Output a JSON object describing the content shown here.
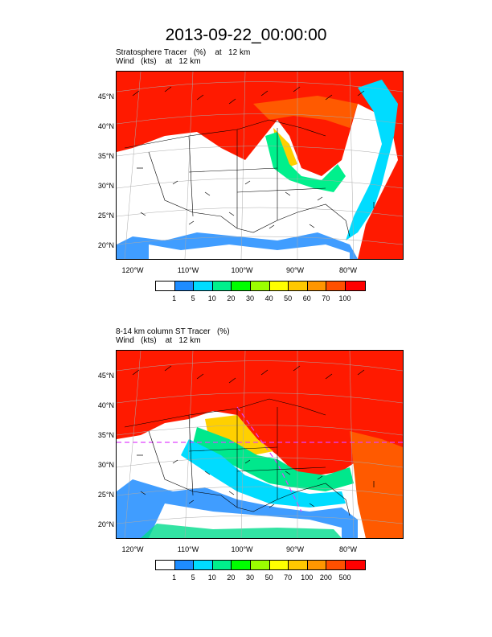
{
  "title": "2013-09-22_00:00:00",
  "panels": [
    {
      "field_line": "Stratosphere Tracer   (%)    at   12 km",
      "wind_line": "Wind   (kts)    at   12 km",
      "lat_labels": [
        "45°N",
        "40°N",
        "35°N",
        "30°N",
        "25°N",
        "20°N"
      ],
      "lon_labels": [
        "120°W",
        "110°W",
        "100°W",
        "90°W",
        "80°W"
      ],
      "colorbar": {
        "colors": [
          "#ffffff",
          "#1e8cff",
          "#00dcff",
          "#00f08c",
          "#00ff00",
          "#9bff00",
          "#ffff00",
          "#ffc800",
          "#ff9600",
          "#ff5000",
          "#ff0000"
        ],
        "labels": [
          "1",
          "5",
          "10",
          "20",
          "30",
          "40",
          "50",
          "60",
          "70",
          "100"
        ]
      }
    },
    {
      "field_line": "8-14 km column ST Tracer   (%)",
      "wind_line": "Wind   (kts)    at   12 km",
      "lat_labels": [
        "45°N",
        "40°N",
        "35°N",
        "30°N",
        "25°N",
        "20°N"
      ],
      "lon_labels": [
        "120°W",
        "110°W",
        "100°W",
        "90°W",
        "80°W"
      ],
      "colorbar": {
        "colors": [
          "#ffffff",
          "#1e8cff",
          "#00dcff",
          "#00f08c",
          "#00ff00",
          "#9bff00",
          "#ffff00",
          "#ffc800",
          "#ff9600",
          "#ff5000",
          "#ff0000"
        ],
        "labels": [
          "1",
          "5",
          "10",
          "20",
          "30",
          "50",
          "70",
          "100",
          "200",
          "500"
        ]
      }
    }
  ]
}
